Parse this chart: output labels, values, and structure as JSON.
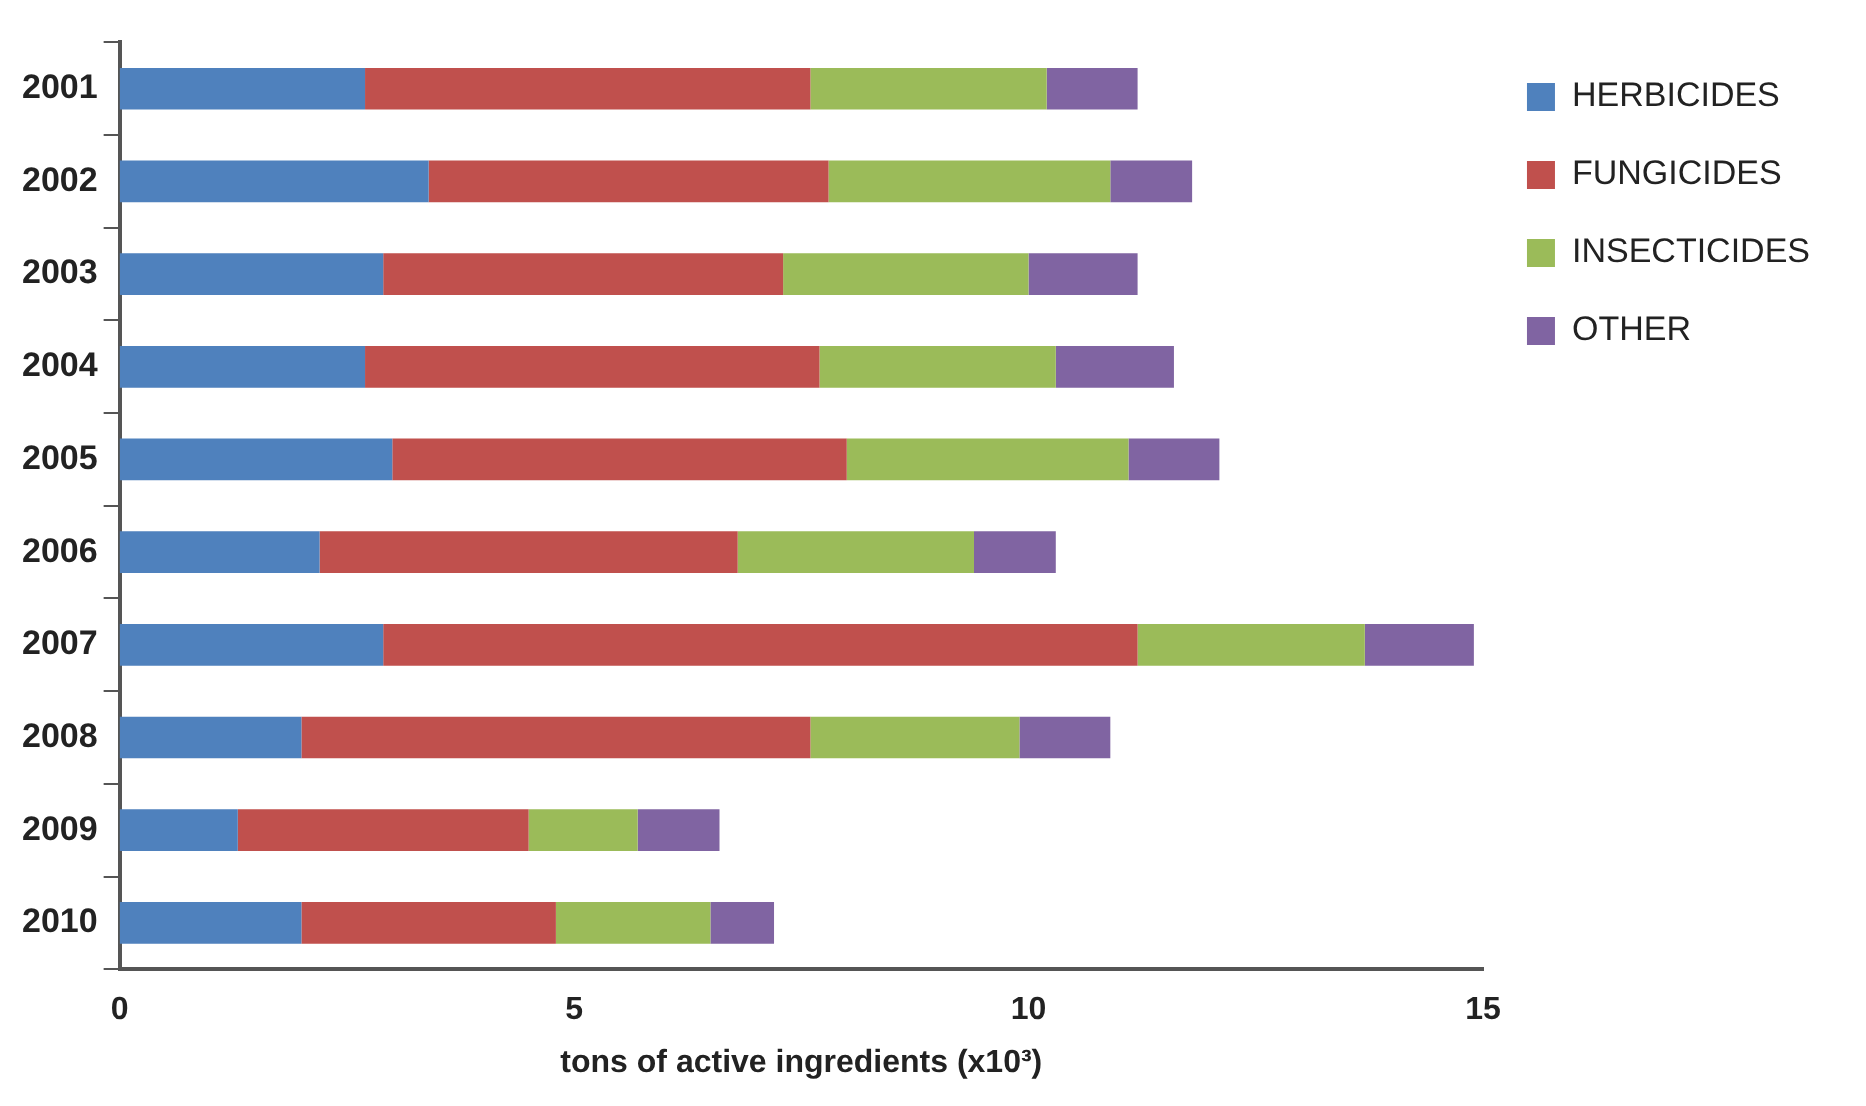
{
  "chart_data": {
    "type": "bar",
    "orientation": "horizontal",
    "stacked": true,
    "xlabel": "tons of active ingredients (x10³)",
    "categories": [
      "2001",
      "2002",
      "2003",
      "2004",
      "2005",
      "2006",
      "2007",
      "2008",
      "2009",
      "2010"
    ],
    "series": [
      {
        "name": "HERBICIDES",
        "color": "#4f81bd",
        "values": [
          2.7,
          3.4,
          2.9,
          2.7,
          3.0,
          2.2,
          2.9,
          2.0,
          1.3,
          2.0
        ]
      },
      {
        "name": "FUNGICIDES",
        "color": "#c0504d",
        "values": [
          4.9,
          4.4,
          4.4,
          5.0,
          5.0,
          4.6,
          8.3,
          5.6,
          3.2,
          2.8
        ]
      },
      {
        "name": "INSECTICIDES",
        "color": "#9bbb59",
        "values": [
          2.6,
          3.1,
          2.7,
          2.6,
          3.1,
          2.6,
          2.5,
          2.3,
          1.2,
          1.7
        ]
      },
      {
        "name": "OTHER",
        "color": "#8064a2",
        "values": [
          1.0,
          0.9,
          1.2,
          1.3,
          1.0,
          0.9,
          1.2,
          1.0,
          0.9,
          0.7
        ]
      }
    ],
    "xlim": [
      0,
      15
    ],
    "xticks": [
      0,
      5,
      10,
      15
    ],
    "grid": false,
    "legend": "top right"
  }
}
